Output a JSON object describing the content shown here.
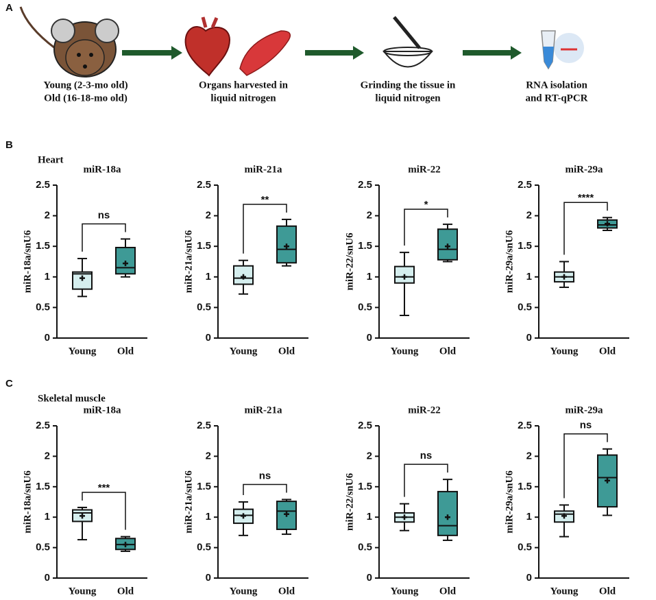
{
  "panel_a": {
    "label": "A",
    "steps": [
      [
        "Young (2-3-mo old)",
        "Old (16-18-mo old)"
      ],
      [
        "Organs harvested in",
        "liquid nitrogen"
      ],
      [
        "Grinding the tissue in",
        "liquid nitrogen"
      ],
      [
        "RNA isolation",
        "and RT-qPCR"
      ]
    ]
  },
  "sections": [
    {
      "label": "B",
      "title": "Heart"
    },
    {
      "label": "C",
      "title": "Skeletal muscle"
    }
  ],
  "chart_data": [
    {
      "type": "box",
      "title": "miR-18a",
      "ylabel": "miR-18a/snU6",
      "categories": [
        "Young",
        "Old"
      ],
      "colors": [
        "#d5eeee",
        "#3e9a96"
      ],
      "ylim": [
        0,
        2.5
      ],
      "yticks": [
        0,
        0.5,
        1,
        1.5,
        2,
        2.5
      ],
      "annotation": "ns",
      "stats": [
        {
          "min": 0.68,
          "q1": 0.8,
          "median": 1.05,
          "q3": 1.08,
          "max": 1.3,
          "mean": 0.98
        },
        {
          "min": 1.0,
          "q1": 1.05,
          "median": 1.15,
          "q3": 1.48,
          "max": 1.62,
          "mean": 1.22
        }
      ]
    },
    {
      "type": "box",
      "title": "miR-21a",
      "ylabel": "miR-21a/snU6",
      "categories": [
        "Young",
        "Old"
      ],
      "colors": [
        "#d5eeee",
        "#3e9a96"
      ],
      "ylim": [
        0,
        2.5
      ],
      "yticks": [
        0,
        0.5,
        1,
        1.5,
        2,
        2.5
      ],
      "annotation": "**",
      "stats": [
        {
          "min": 0.72,
          "q1": 0.88,
          "median": 0.98,
          "q3": 1.18,
          "max": 1.27,
          "mean": 1.0
        },
        {
          "min": 1.18,
          "q1": 1.23,
          "median": 1.45,
          "q3": 1.83,
          "max": 1.94,
          "mean": 1.5
        }
      ]
    },
    {
      "type": "box",
      "title": "miR-22",
      "ylabel": "miR-22/snU6",
      "categories": [
        "Young",
        "Old"
      ],
      "colors": [
        "#d5eeee",
        "#3e9a96"
      ],
      "ylim": [
        0,
        2.5
      ],
      "yticks": [
        0,
        0.5,
        1,
        1.5,
        2,
        2.5
      ],
      "annotation": "*",
      "stats": [
        {
          "min": 0.37,
          "q1": 0.9,
          "median": 1.0,
          "q3": 1.17,
          "max": 1.4,
          "mean": 1.0
        },
        {
          "min": 1.25,
          "q1": 1.28,
          "median": 1.45,
          "q3": 1.78,
          "max": 1.86,
          "mean": 1.5
        }
      ]
    },
    {
      "type": "box",
      "title": "miR-29a",
      "ylabel": "miR-29a/snU6",
      "categories": [
        "Young",
        "Old"
      ],
      "colors": [
        "#d5eeee",
        "#3e9a96"
      ],
      "ylim": [
        0,
        2.5
      ],
      "yticks": [
        0,
        0.5,
        1,
        1.5,
        2,
        2.5
      ],
      "annotation": "****",
      "stats": [
        {
          "min": 0.83,
          "q1": 0.92,
          "median": 1.0,
          "q3": 1.08,
          "max": 1.25,
          "mean": 1.0
        },
        {
          "min": 1.76,
          "q1": 1.8,
          "median": 1.85,
          "q3": 1.93,
          "max": 1.97,
          "mean": 1.87
        }
      ]
    },
    {
      "type": "box",
      "title": "miR-18a",
      "ylabel": "miR-18a/snU6",
      "categories": [
        "Young",
        "Old"
      ],
      "colors": [
        "#d5eeee",
        "#3e9a96"
      ],
      "ylim": [
        0,
        2.5
      ],
      "yticks": [
        0,
        0.5,
        1,
        1.5,
        2,
        2.5
      ],
      "annotation": "***",
      "stats": [
        {
          "min": 0.63,
          "q1": 0.93,
          "median": 1.07,
          "q3": 1.12,
          "max": 1.16,
          "mean": 1.02
        },
        {
          "min": 0.44,
          "q1": 0.47,
          "median": 0.55,
          "q3": 0.65,
          "max": 0.68,
          "mean": 0.55
        }
      ]
    },
    {
      "type": "box",
      "title": "miR-21a",
      "ylabel": "miR-21a/snU6",
      "categories": [
        "Young",
        "Old"
      ],
      "colors": [
        "#d5eeee",
        "#3e9a96"
      ],
      "ylim": [
        0,
        2.5
      ],
      "yticks": [
        0,
        0.5,
        1,
        1.5,
        2,
        2.5
      ],
      "annotation": "ns",
      "stats": [
        {
          "min": 0.7,
          "q1": 0.9,
          "median": 1.03,
          "q3": 1.13,
          "max": 1.25,
          "mean": 1.02
        },
        {
          "min": 0.72,
          "q1": 0.8,
          "median": 1.1,
          "q3": 1.26,
          "max": 1.29,
          "mean": 1.05
        }
      ]
    },
    {
      "type": "box",
      "title": "miR-22",
      "ylabel": "miR-22/snU6",
      "categories": [
        "Young",
        "Old"
      ],
      "colors": [
        "#d5eeee",
        "#3e9a96"
      ],
      "ylim": [
        0,
        2.5
      ],
      "yticks": [
        0,
        0.5,
        1,
        1.5,
        2,
        2.5
      ],
      "annotation": "ns",
      "stats": [
        {
          "min": 0.78,
          "q1": 0.92,
          "median": 1.0,
          "q3": 1.07,
          "max": 1.22,
          "mean": 1.0
        },
        {
          "min": 0.62,
          "q1": 0.7,
          "median": 0.86,
          "q3": 1.42,
          "max": 1.62,
          "mean": 1.0
        }
      ]
    },
    {
      "type": "box",
      "title": "miR-29a",
      "ylabel": "miR-29a/snU6",
      "categories": [
        "Young",
        "Old"
      ],
      "colors": [
        "#d5eeee",
        "#3e9a96"
      ],
      "ylim": [
        0,
        2.5
      ],
      "yticks": [
        0,
        0.5,
        1,
        1.5,
        2,
        2.5
      ],
      "annotation": "ns",
      "stats": [
        {
          "min": 0.68,
          "q1": 0.92,
          "median": 1.05,
          "q3": 1.1,
          "max": 1.2,
          "mean": 1.02
        },
        {
          "min": 1.03,
          "q1": 1.17,
          "median": 1.65,
          "q3": 2.02,
          "max": 2.12,
          "mean": 1.6
        }
      ]
    }
  ]
}
